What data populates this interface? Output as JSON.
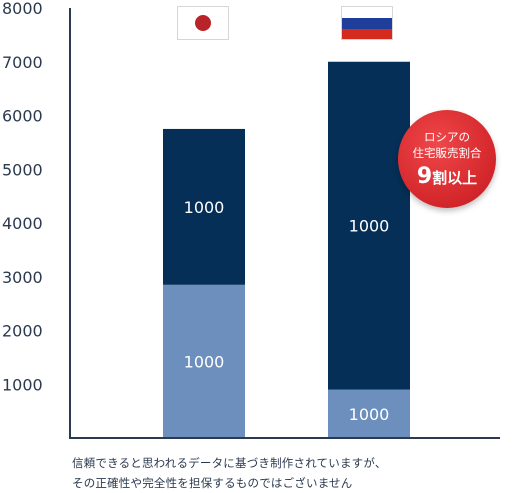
{
  "chart_data": {
    "type": "bar",
    "stacked": true,
    "categories": [
      "Japan",
      "Russia"
    ],
    "series": [
      {
        "values": [
          2850,
          900
        ],
        "color": "#6c8fbd",
        "labels": [
          "1000",
          "1000"
        ]
      },
      {
        "values": [
          2900,
          6100
        ],
        "color": "#052f56",
        "labels": [
          "1000",
          "1000"
        ]
      }
    ],
    "y_ticks": [
      "1000",
      "2000",
      "3000",
      "4000",
      "5000",
      "6000",
      "7000",
      "8000"
    ],
    "ylim": [
      0,
      8000
    ],
    "axis_color": "#2c3a4f"
  },
  "flags": {
    "japan": "japan-flag-icon",
    "russia": "russia-flag-icon",
    "japan_colors": {
      "field": "#ffffff",
      "disc": "#b8242a"
    },
    "russia_colors": [
      "#ffffff",
      "#1f3d9a",
      "#d52b1e"
    ]
  },
  "badge": {
    "line1": "ロシアの",
    "line2": "住宅販売割合",
    "line3_number": "9",
    "line3_text": "割以上",
    "color": "#d2262a"
  },
  "footnote": {
    "line1": "信頼できると思われるデータに基づき制作されていますが、",
    "line2": "その正確性や完全性を担保するものではございません"
  }
}
